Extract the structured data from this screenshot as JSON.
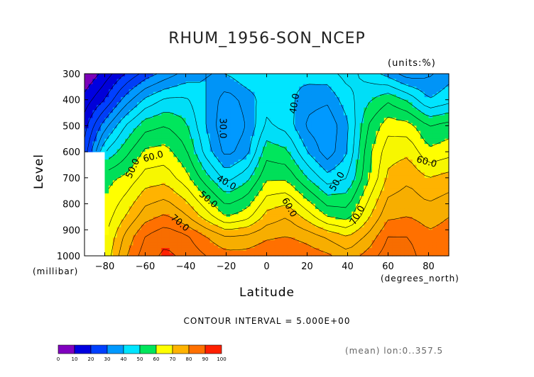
{
  "chart_data": {
    "type": "heatmap",
    "title": "RHUM_1956-SON_NCEP",
    "units_label": "(units:%)",
    "xlabel": "Latitude",
    "x_units_label": "(degrees_north)",
    "ylabel": "Level",
    "y_units_label": "(millibar)",
    "xlim": [
      -90,
      90
    ],
    "ylim": [
      1000,
      300
    ],
    "x_ticks": [
      -80,
      -60,
      -40,
      -20,
      0,
      20,
      40,
      60,
      80
    ],
    "x_tick_labels": [
      "−80",
      "−60",
      "−40",
      "−20",
      "0",
      "20",
      "40",
      "60",
      "80"
    ],
    "y_ticks": [
      300,
      400,
      500,
      600,
      700,
      800,
      900,
      1000
    ],
    "y_tick_labels": [
      "300",
      "400",
      "500",
      "600",
      "700",
      "800",
      "900",
      "1000"
    ],
    "lat": [
      -90,
      -80,
      -70,
      -60,
      -50,
      -40,
      -30,
      -20,
      -10,
      0,
      10,
      20,
      30,
      40,
      50,
      60,
      70,
      80,
      90
    ],
    "levels": [
      1000,
      925,
      850,
      700,
      600,
      500,
      400,
      300
    ],
    "values": [
      [
        null,
        66,
        79,
        88,
        91,
        89,
        85,
        82,
        82,
        84,
        85,
        83,
        81,
        77,
        82,
        88,
        87,
        82,
        82
      ],
      [
        null,
        64,
        76,
        85,
        89,
        86,
        80,
        75,
        76,
        79,
        80,
        78,
        74,
        70,
        76,
        85,
        85,
        81,
        82
      ],
      [
        null,
        62,
        70,
        78,
        81,
        76,
        68,
        60,
        63,
        72,
        75,
        68,
        60,
        58,
        69,
        79,
        80,
        78,
        80
      ],
      [
        null,
        58,
        61,
        67,
        68,
        62,
        52,
        43,
        48,
        59,
        59,
        50,
        42,
        45,
        59,
        71,
        74,
        70,
        72
      ],
      [
        22,
        45,
        53,
        61,
        62,
        56,
        43,
        33,
        38,
        53,
        51,
        40,
        32,
        40,
        58,
        68,
        69,
        61,
        63
      ],
      [
        18,
        33,
        45,
        53,
        55,
        51,
        40,
        30,
        35,
        46,
        43,
        34,
        31,
        39,
        55,
        63,
        62,
        55,
        57
      ],
      [
        12,
        20,
        32,
        41,
        46,
        46,
        40,
        32,
        37,
        43,
        42,
        37,
        36,
        43,
        49,
        54,
        49,
        40,
        43
      ],
      [
        5,
        12,
        20,
        27,
        32,
        37,
        40,
        40,
        44,
        42,
        41,
        42,
        43,
        47,
        43,
        38,
        32,
        34,
        38
      ]
    ],
    "contour_interval_text": "CONTOUR INTERVAL = 5.000E+00",
    "contour_labels": [
      {
        "text": "30.0",
        "lat": -22,
        "level": 510,
        "rot": 90
      },
      {
        "text": "40.0",
        "lat": -20,
        "level": 720,
        "rot": 30
      },
      {
        "text": "40.0",
        "lat": 14,
        "level": 415,
        "rot": -80
      },
      {
        "text": "50.0",
        "lat": -66,
        "level": 665,
        "rot": -65
      },
      {
        "text": "50.0",
        "lat": -29,
        "level": 785,
        "rot": 40
      },
      {
        "text": "50.0",
        "lat": 35,
        "level": 715,
        "rot": -60
      },
      {
        "text": "60.0",
        "lat": -56,
        "level": 620,
        "rot": -15
      },
      {
        "text": "60.0",
        "lat": 11,
        "level": 815,
        "rot": 60
      },
      {
        "text": "60.0",
        "lat": 79,
        "level": 640,
        "rot": 15
      },
      {
        "text": "70.0",
        "lat": -43,
        "level": 875,
        "rot": 40
      },
      {
        "text": "70.0",
        "lat": 45,
        "level": 845,
        "rot": -60
      }
    ],
    "colorbar": {
      "ticks": [
        "0",
        "10",
        "20",
        "30",
        "40",
        "50",
        "60",
        "70",
        "80",
        "90",
        "100"
      ],
      "colors": [
        "#8000bf",
        "#0000e0",
        "#0040ff",
        "#0099ff",
        "#00e5ff",
        "#00e65c",
        "#ffff00",
        "#ffb300",
        "#ff7000",
        "#ff2000"
      ]
    },
    "footer_text": "(mean) lon:0..357.5",
    "grid": false,
    "legend": "bottom-left"
  }
}
